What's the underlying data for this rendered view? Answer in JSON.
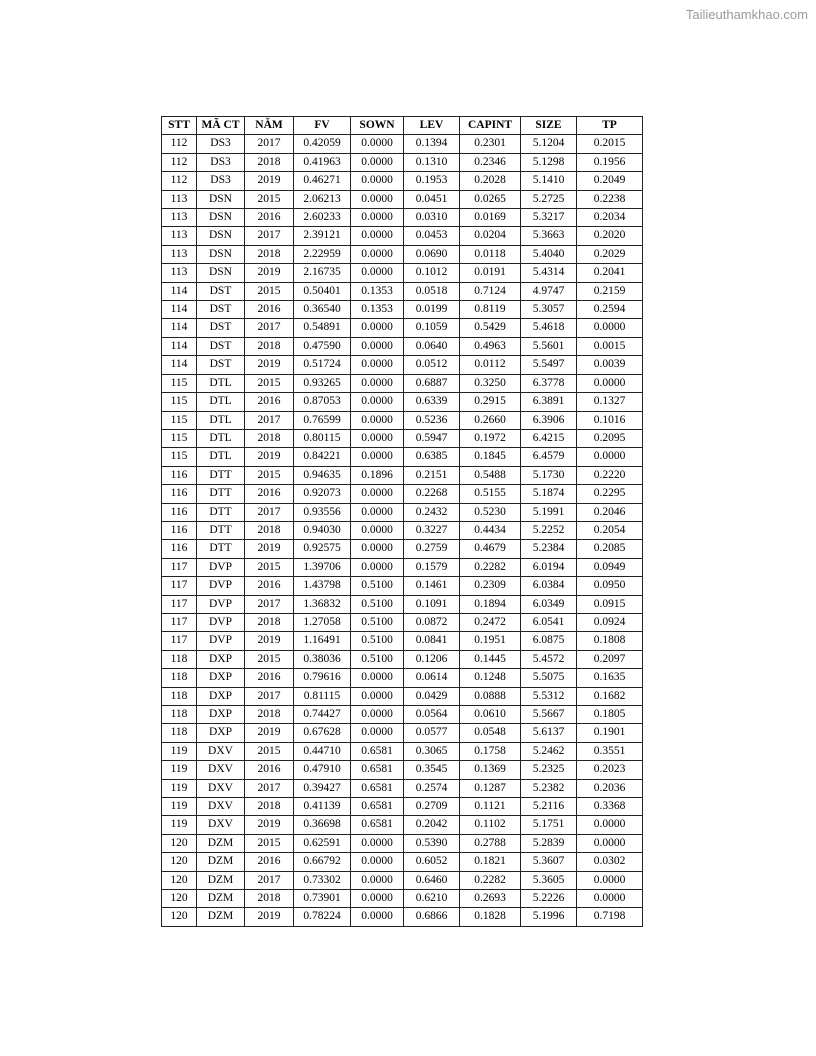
{
  "watermark": "Tailieuthamkhao.com",
  "table": {
    "headers": [
      "STT",
      "MÃ CT",
      "NĂM",
      "FV",
      "SOWN",
      "LEV",
      "CAPINT",
      "SIZE",
      "TP"
    ],
    "rows": [
      [
        "112",
        "DS3",
        "2017",
        "0.42059",
        "0.0000",
        "0.1394",
        "0.2301",
        "5.1204",
        "0.2015"
      ],
      [
        "112",
        "DS3",
        "2018",
        "0.41963",
        "0.0000",
        "0.1310",
        "0.2346",
        "5.1298",
        "0.1956"
      ],
      [
        "112",
        "DS3",
        "2019",
        "0.46271",
        "0.0000",
        "0.1953",
        "0.2028",
        "5.1410",
        "0.2049"
      ],
      [
        "113",
        "DSN",
        "2015",
        "2.06213",
        "0.0000",
        "0.0451",
        "0.0265",
        "5.2725",
        "0.2238"
      ],
      [
        "113",
        "DSN",
        "2016",
        "2.60233",
        "0.0000",
        "0.0310",
        "0.0169",
        "5.3217",
        "0.2034"
      ],
      [
        "113",
        "DSN",
        "2017",
        "2.39121",
        "0.0000",
        "0.0453",
        "0.0204",
        "5.3663",
        "0.2020"
      ],
      [
        "113",
        "DSN",
        "2018",
        "2.22959",
        "0.0000",
        "0.0690",
        "0.0118",
        "5.4040",
        "0.2029"
      ],
      [
        "113",
        "DSN",
        "2019",
        "2.16735",
        "0.0000",
        "0.1012",
        "0.0191",
        "5.4314",
        "0.2041"
      ],
      [
        "114",
        "DST",
        "2015",
        "0.50401",
        "0.1353",
        "0.0518",
        "0.7124",
        "4.9747",
        "0.2159"
      ],
      [
        "114",
        "DST",
        "2016",
        "0.36540",
        "0.1353",
        "0.0199",
        "0.8119",
        "5.3057",
        "0.2594"
      ],
      [
        "114",
        "DST",
        "2017",
        "0.54891",
        "0.0000",
        "0.1059",
        "0.5429",
        "5.4618",
        "0.0000"
      ],
      [
        "114",
        "DST",
        "2018",
        "0.47590",
        "0.0000",
        "0.0640",
        "0.4963",
        "5.5601",
        "0.0015"
      ],
      [
        "114",
        "DST",
        "2019",
        "0.51724",
        "0.0000",
        "0.0512",
        "0.0112",
        "5.5497",
        "0.0039"
      ],
      [
        "115",
        "DTL",
        "2015",
        "0.93265",
        "0.0000",
        "0.6887",
        "0.3250",
        "6.3778",
        "0.0000"
      ],
      [
        "115",
        "DTL",
        "2016",
        "0.87053",
        "0.0000",
        "0.6339",
        "0.2915",
        "6.3891",
        "0.1327"
      ],
      [
        "115",
        "DTL",
        "2017",
        "0.76599",
        "0.0000",
        "0.5236",
        "0.2660",
        "6.3906",
        "0.1016"
      ],
      [
        "115",
        "DTL",
        "2018",
        "0.80115",
        "0.0000",
        "0.5947",
        "0.1972",
        "6.4215",
        "0.2095"
      ],
      [
        "115",
        "DTL",
        "2019",
        "0.84221",
        "0.0000",
        "0.6385",
        "0.1845",
        "6.4579",
        "0.0000"
      ],
      [
        "116",
        "DTT",
        "2015",
        "0.94635",
        "0.1896",
        "0.2151",
        "0.5488",
        "5.1730",
        "0.2220"
      ],
      [
        "116",
        "DTT",
        "2016",
        "0.92073",
        "0.0000",
        "0.2268",
        "0.5155",
        "5.1874",
        "0.2295"
      ],
      [
        "116",
        "DTT",
        "2017",
        "0.93556",
        "0.0000",
        "0.2432",
        "0.5230",
        "5.1991",
        "0.2046"
      ],
      [
        "116",
        "DTT",
        "2018",
        "0.94030",
        "0.0000",
        "0.3227",
        "0.4434",
        "5.2252",
        "0.2054"
      ],
      [
        "116",
        "DTT",
        "2019",
        "0.92575",
        "0.0000",
        "0.2759",
        "0.4679",
        "5.2384",
        "0.2085"
      ],
      [
        "117",
        "DVP",
        "2015",
        "1.39706",
        "0.0000",
        "0.1579",
        "0.2282",
        "6.0194",
        "0.0949"
      ],
      [
        "117",
        "DVP",
        "2016",
        "1.43798",
        "0.5100",
        "0.1461",
        "0.2309",
        "6.0384",
        "0.0950"
      ],
      [
        "117",
        "DVP",
        "2017",
        "1.36832",
        "0.5100",
        "0.1091",
        "0.1894",
        "6.0349",
        "0.0915"
      ],
      [
        "117",
        "DVP",
        "2018",
        "1.27058",
        "0.5100",
        "0.0872",
        "0.2472",
        "6.0541",
        "0.0924"
      ],
      [
        "117",
        "DVP",
        "2019",
        "1.16491",
        "0.5100",
        "0.0841",
        "0.1951",
        "6.0875",
        "0.1808"
      ],
      [
        "118",
        "DXP",
        "2015",
        "0.38036",
        "0.5100",
        "0.1206",
        "0.1445",
        "5.4572",
        "0.2097"
      ],
      [
        "118",
        "DXP",
        "2016",
        "0.79616",
        "0.0000",
        "0.0614",
        "0.1248",
        "5.5075",
        "0.1635"
      ],
      [
        "118",
        "DXP",
        "2017",
        "0.81115",
        "0.0000",
        "0.0429",
        "0.0888",
        "5.5312",
        "0.1682"
      ],
      [
        "118",
        "DXP",
        "2018",
        "0.74427",
        "0.0000",
        "0.0564",
        "0.0610",
        "5.5667",
        "0.1805"
      ],
      [
        "118",
        "DXP",
        "2019",
        "0.67628",
        "0.0000",
        "0.0577",
        "0.0548",
        "5.6137",
        "0.1901"
      ],
      [
        "119",
        "DXV",
        "2015",
        "0.44710",
        "0.6581",
        "0.3065",
        "0.1758",
        "5.2462",
        "0.3551"
      ],
      [
        "119",
        "DXV",
        "2016",
        "0.47910",
        "0.6581",
        "0.3545",
        "0.1369",
        "5.2325",
        "0.2023"
      ],
      [
        "119",
        "DXV",
        "2017",
        "0.39427",
        "0.6581",
        "0.2574",
        "0.1287",
        "5.2382",
        "0.2036"
      ],
      [
        "119",
        "DXV",
        "2018",
        "0.41139",
        "0.6581",
        "0.2709",
        "0.1121",
        "5.2116",
        "0.3368"
      ],
      [
        "119",
        "DXV",
        "2019",
        "0.36698",
        "0.6581",
        "0.2042",
        "0.1102",
        "5.1751",
        "0.0000"
      ],
      [
        "120",
        "DZM",
        "2015",
        "0.62591",
        "0.0000",
        "0.5390",
        "0.2788",
        "5.2839",
        "0.0000"
      ],
      [
        "120",
        "DZM",
        "2016",
        "0.66792",
        "0.0000",
        "0.6052",
        "0.1821",
        "5.3607",
        "0.0302"
      ],
      [
        "120",
        "DZM",
        "2017",
        "0.73302",
        "0.0000",
        "0.6460",
        "0.2282",
        "5.3605",
        "0.0000"
      ],
      [
        "120",
        "DZM",
        "2018",
        "0.73901",
        "0.0000",
        "0.6210",
        "0.2693",
        "5.2226",
        "0.0000"
      ],
      [
        "120",
        "DZM",
        "2019",
        "0.78224",
        "0.0000",
        "0.6866",
        "0.1828",
        "5.1996",
        "0.7198"
      ]
    ]
  }
}
